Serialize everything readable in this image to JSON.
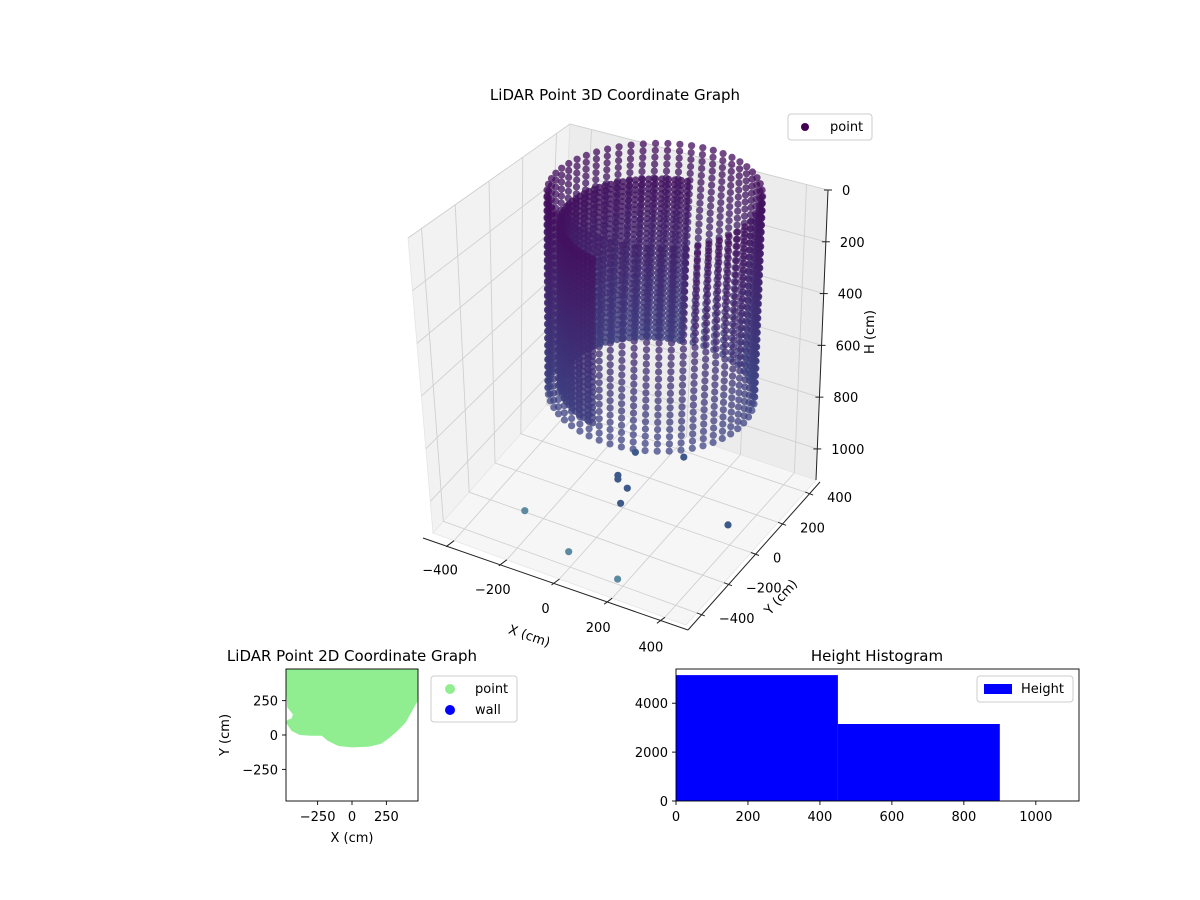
{
  "chart_data": [
    {
      "type": "scatter3d",
      "title": "LiDAR Point 3D Coordinate Graph",
      "xlabel": "X (cm)",
      "ylabel": "Y (cm)",
      "zlabel": "H (cm)",
      "xticks": [
        "−400",
        "−200",
        "0",
        "200",
        "400"
      ],
      "yticks": [
        "−400",
        "−200",
        "0",
        "200",
        "400"
      ],
      "zticks": [
        "0",
        "200",
        "400",
        "600",
        "800",
        "1000"
      ],
      "xlim": [
        -480,
        480
      ],
      "ylim": [
        -480,
        480
      ],
      "zlim": [
        0,
        1120
      ],
      "zaxis_inverted": true,
      "legend": {
        "position": "top-right",
        "entries": [
          {
            "name": "point",
            "color": "#440154"
          }
        ]
      },
      "shape": {
        "description_free": true,
        "ring_center": [
          0,
          200
        ],
        "ring_radius": 340,
        "h_range": [
          0,
          800
        ]
      },
      "scattered_points": [
        {
          "x": -30,
          "y": 150,
          "h": 1000
        },
        {
          "x": 120,
          "y": 210,
          "h": 1000
        },
        {
          "x": -20,
          "y": 0,
          "h": 1000
        },
        {
          "x": -10,
          "y": -20,
          "h": 1000
        },
        {
          "x": 40,
          "y": -50,
          "h": 1000
        },
        {
          "x": 60,
          "y": -140,
          "h": 1000
        },
        {
          "x": 420,
          "y": -60,
          "h": 1000
        },
        {
          "x": -260,
          "y": -220,
          "h": 1100
        },
        {
          "x": -30,
          "y": -350,
          "h": 1100
        },
        {
          "x": 180,
          "y": -400,
          "h": 1100
        }
      ]
    },
    {
      "type": "scatter",
      "title": "LiDAR Point 2D Coordinate Graph",
      "xlabel": "X (cm)",
      "ylabel": "Y (cm)",
      "xticks": [
        -250,
        0,
        250
      ],
      "yticks": [
        -250,
        0,
        250
      ],
      "xlim": [
        -480,
        480
      ],
      "ylim": [
        -480,
        480
      ],
      "legend": {
        "position": "outside-right",
        "entries": [
          {
            "name": "point",
            "color": "#90ee90"
          },
          {
            "name": "wall",
            "color": "#0000ff"
          }
        ]
      },
      "point_region_outline": [
        [
          -480,
          480
        ],
        [
          -480,
          330
        ],
        [
          -470,
          200
        ],
        [
          -430,
          150
        ],
        [
          -440,
          120
        ],
        [
          -470,
          110
        ],
        [
          -480,
          90
        ],
        [
          -440,
          30
        ],
        [
          -380,
          0
        ],
        [
          -300,
          -5
        ],
        [
          -220,
          -5
        ],
        [
          -180,
          -40
        ],
        [
          -100,
          -80
        ],
        [
          0,
          -90
        ],
        [
          120,
          -85
        ],
        [
          210,
          -65
        ],
        [
          260,
          -30
        ],
        [
          320,
          20
        ],
        [
          390,
          90
        ],
        [
          440,
          180
        ],
        [
          480,
          250
        ],
        [
          480,
          480
        ]
      ]
    },
    {
      "type": "bar",
      "title": "Height Histogram",
      "xlabel": "",
      "ylabel": "",
      "bins": [
        {
          "start": 0,
          "end": 450,
          "count": 5150
        },
        {
          "start": 450,
          "end": 900,
          "count": 3150
        },
        {
          "start": 900,
          "end": 1120,
          "count": 0
        }
      ],
      "xticks": [
        0,
        200,
        400,
        600,
        800,
        1000
      ],
      "yticks": [
        0,
        2000,
        4000
      ],
      "xlim": [
        0,
        1120
      ],
      "ylim": [
        0,
        5400
      ],
      "legend": {
        "position": "top-right",
        "entries": [
          {
            "name": "Height",
            "color": "#0000ff"
          }
        ]
      }
    }
  ]
}
